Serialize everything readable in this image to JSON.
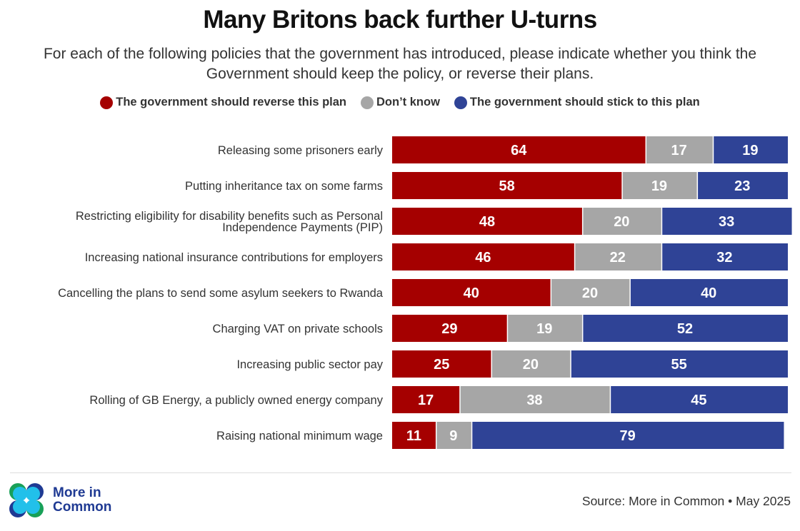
{
  "title": "Many Britons back further U-turns",
  "subtitle": "For each of the following policies that the government has introduced, please indicate whether you think the Government should keep the policy, or reverse their plans.",
  "legend": [
    {
      "label": "The government should reverse this plan",
      "color": "#a50000"
    },
    {
      "label": "Don’t know",
      "color": "#a6a6a6"
    },
    {
      "label": "The government should stick to this plan",
      "color": "#2f4396"
    }
  ],
  "chart_data": {
    "type": "bar",
    "orientation": "horizontal",
    "stacked": true,
    "title": "Many Britons back further U-turns",
    "xlabel": "",
    "ylabel": "",
    "xlim": [
      0,
      100
    ],
    "grid": false,
    "legend_position": "top",
    "categories": [
      "Releasing some prisoners early",
      "Putting inheritance tax on some farms",
      "Restricting eligibility for disability benefits such as Personal Independence Payments (PIP)",
      "Increasing national insurance contributions for employers",
      "Cancelling the plans to send some asylum seekers to Rwanda",
      "Charging VAT on private schools",
      "Increasing public sector pay",
      "Rolling of GB Energy, a publicly owned energy company",
      "Raising national minimum wage"
    ],
    "category_lines": [
      [
        "Releasing some prisoners early"
      ],
      [
        "Putting inheritance tax on some farms"
      ],
      [
        "Restricting eligibility for disability benefits such as Personal",
        "Independence Payments (PIP)"
      ],
      [
        "Increasing national insurance contributions for employers"
      ],
      [
        "Cancelling the plans to send some asylum seekers to Rwanda"
      ],
      [
        "Charging VAT on private schools"
      ],
      [
        "Increasing public sector pay"
      ],
      [
        "Rolling of GB Energy, a publicly owned energy company"
      ],
      [
        "Raising national minimum wage"
      ]
    ],
    "series": [
      {
        "name": "The government should reverse this plan",
        "color": "#a50000",
        "values": [
          64,
          58,
          48,
          46,
          40,
          29,
          25,
          17,
          11
        ]
      },
      {
        "name": "Don’t know",
        "color": "#a6a6a6",
        "values": [
          17,
          19,
          20,
          22,
          20,
          19,
          20,
          38,
          9
        ]
      },
      {
        "name": "The government should stick to this plan",
        "color": "#2f4396",
        "values": [
          19,
          23,
          33,
          32,
          40,
          52,
          55,
          45,
          79
        ]
      }
    ]
  },
  "footer": {
    "logo_line1": "More in",
    "logo_line2": "Common",
    "source": "Source: More in Common • May 2025"
  }
}
